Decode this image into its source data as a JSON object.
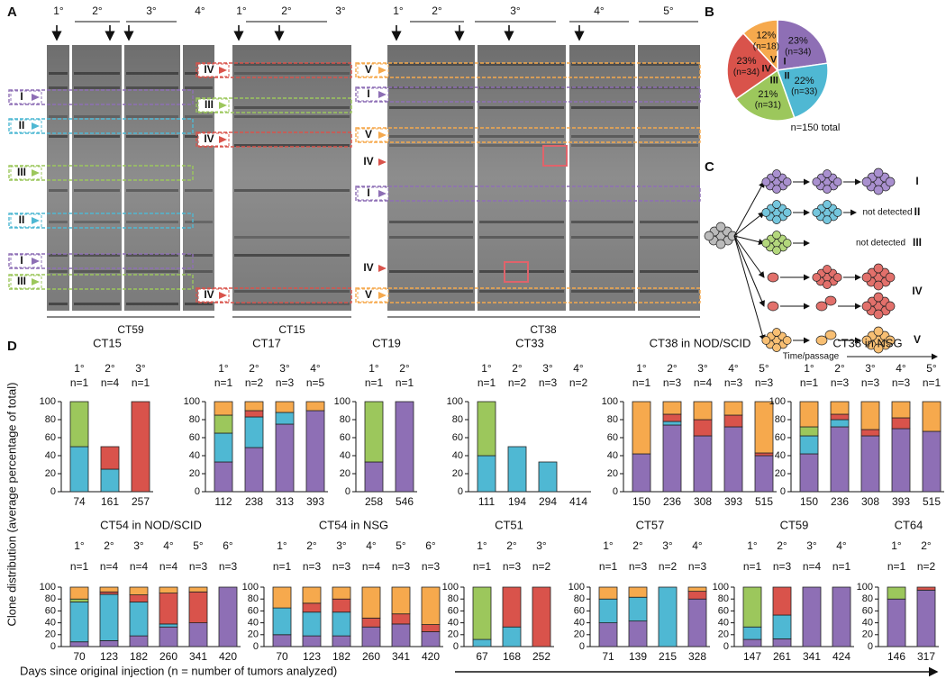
{
  "panel_labels": [
    "A",
    "B",
    "C",
    "D"
  ],
  "panel_a": {
    "blots": [
      {
        "name": "CT59",
        "passages": [
          "1°",
          "2°",
          "3°",
          "4°"
        ],
        "bands": [
          "I",
          "II",
          "III",
          "II",
          "I",
          "III"
        ]
      },
      {
        "name": "CT15",
        "passages": [
          "1°",
          "2°",
          "3°"
        ],
        "bands": [
          "IV",
          "III",
          "IV",
          "IV"
        ]
      },
      {
        "name": "CT38",
        "passages": [
          "1°",
          "2°",
          "3°",
          "4°",
          "5°"
        ],
        "bands": [
          "V",
          "I",
          "V",
          "IV",
          "I",
          "IV",
          "V"
        ]
      }
    ]
  },
  "panel_c": {
    "labels": [
      "I",
      "II",
      "III",
      "IV",
      "V"
    ],
    "notes": [
      "not detected",
      "not detected"
    ],
    "axis_label": "Time/passage"
  },
  "panel_d": {
    "ylabel": "Clone distribution (average percentage of total)",
    "xlabel": "Days since original injection (n = number of tumors analyzed)"
  },
  "chart_data": [
    {
      "type": "pie",
      "categories": [
        "I",
        "II",
        "III",
        "IV",
        "V"
      ],
      "values": [
        23,
        22,
        21,
        23,
        12
      ],
      "value_labels": [
        "23%",
        "22%",
        "21%",
        "23%",
        "12%"
      ],
      "n_labels": [
        "(n=34)",
        "(n=33)",
        "(n=31)",
        "(n=34)",
        "(n=18)"
      ],
      "colors": [
        "#8e6fb5",
        "#4fb8d3",
        "#9cc75c",
        "#d9534b",
        "#f6a94d"
      ],
      "note": "n=150 total"
    },
    {
      "type": "bar",
      "title": "CT15",
      "passages": [
        "1°",
        "2°",
        "3°"
      ],
      "n_labels": [
        "n=1",
        "n=4",
        "n=1"
      ],
      "categories": [
        "74",
        "161",
        "257"
      ],
      "ylim": [
        0,
        100
      ],
      "yticks": [
        0,
        20,
        40,
        60,
        80,
        100
      ],
      "series": [
        {
          "color": "#8e6fb5",
          "values": [
            0,
            0,
            0
          ]
        },
        {
          "color": "#4fb8d3",
          "values": [
            50,
            25,
            0
          ]
        },
        {
          "color": "#9cc75c",
          "values": [
            50,
            0,
            0
          ]
        },
        {
          "color": "#d9534b",
          "values": [
            0,
            25,
            100
          ]
        },
        {
          "color": "#f6a94d",
          "values": [
            0,
            0,
            0
          ]
        }
      ]
    },
    {
      "type": "bar",
      "title": "CT17",
      "passages": [
        "1°",
        "2°",
        "3°",
        "4°"
      ],
      "n_labels": [
        "n=1",
        "n=2",
        "n=3",
        "n=5"
      ],
      "categories": [
        "112",
        "238",
        "313",
        "393"
      ],
      "ylim": [
        0,
        100
      ],
      "yticks": [
        0,
        20,
        40,
        60,
        80,
        100
      ],
      "series": [
        {
          "color": "#8e6fb5",
          "values": [
            33,
            49,
            75,
            90
          ]
        },
        {
          "color": "#4fb8d3",
          "values": [
            32,
            34,
            13,
            0
          ]
        },
        {
          "color": "#9cc75c",
          "values": [
            20,
            0,
            0,
            0
          ]
        },
        {
          "color": "#d9534b",
          "values": [
            0,
            7,
            0,
            0
          ]
        },
        {
          "color": "#f6a94d",
          "values": [
            15,
            10,
            12,
            10
          ]
        }
      ]
    },
    {
      "type": "bar",
      "title": "CT19",
      "passages": [
        "1°",
        "2°"
      ],
      "n_labels": [
        "n=1",
        "n=1"
      ],
      "categories": [
        "258",
        "546"
      ],
      "ylim": [
        0,
        100
      ],
      "yticks": [
        0,
        20,
        40,
        60,
        80,
        100
      ],
      "series": [
        {
          "color": "#8e6fb5",
          "values": [
            33,
            100
          ]
        },
        {
          "color": "#4fb8d3",
          "values": [
            0,
            0
          ]
        },
        {
          "color": "#9cc75c",
          "values": [
            67,
            0
          ]
        },
        {
          "color": "#d9534b",
          "values": [
            0,
            0
          ]
        },
        {
          "color": "#f6a94d",
          "values": [
            0,
            0
          ]
        }
      ]
    },
    {
      "type": "bar",
      "title": "CT33",
      "passages": [
        "1°",
        "2°",
        "3°",
        "4°"
      ],
      "n_labels": [
        "n=1",
        "n=2",
        "n=3",
        "n=2"
      ],
      "categories": [
        "111",
        "194",
        "294",
        "414"
      ],
      "ylim": [
        0,
        100
      ],
      "yticks": [
        0,
        20,
        40,
        60,
        80,
        100
      ],
      "series": [
        {
          "color": "#8e6fb5",
          "values": [
            0,
            0,
            0,
            0
          ]
        },
        {
          "color": "#4fb8d3",
          "values": [
            40,
            50,
            33,
            0
          ]
        },
        {
          "color": "#9cc75c",
          "values": [
            60,
            0,
            0,
            0
          ]
        },
        {
          "color": "#d9534b",
          "values": [
            0,
            0,
            0,
            0
          ]
        },
        {
          "color": "#f6a94d",
          "values": [
            0,
            0,
            0,
            0
          ]
        }
      ]
    },
    {
      "type": "bar",
      "title": "CT38 in NOD/SCID",
      "passages": [
        "1°",
        "2°",
        "3°",
        "4°",
        "5°"
      ],
      "n_labels": [
        "n=1",
        "n=3",
        "n=4",
        "n=3",
        "n=3"
      ],
      "categories": [
        "150",
        "236",
        "308",
        "393",
        "515"
      ],
      "ylim": [
        0,
        100
      ],
      "yticks": [
        0,
        20,
        40,
        60,
        80,
        100
      ],
      "series": [
        {
          "color": "#8e6fb5",
          "values": [
            42,
            74,
            62,
            72,
            40
          ]
        },
        {
          "color": "#4fb8d3",
          "values": [
            0,
            4,
            0,
            0,
            0
          ]
        },
        {
          "color": "#9cc75c",
          "values": [
            0,
            0,
            0,
            0,
            0
          ]
        },
        {
          "color": "#d9534b",
          "values": [
            0,
            8,
            18,
            13,
            3
          ]
        },
        {
          "color": "#f6a94d",
          "values": [
            58,
            14,
            20,
            15,
            57
          ]
        }
      ]
    },
    {
      "type": "bar",
      "title": "CT38 in NSG",
      "passages": [
        "1°",
        "2°",
        "3°",
        "4°",
        "5°"
      ],
      "n_labels": [
        "n=1",
        "n=3",
        "n=3",
        "n=3",
        "n=1"
      ],
      "categories": [
        "150",
        "236",
        "308",
        "393",
        "515"
      ],
      "ylim": [
        0,
        100
      ],
      "yticks": [
        0,
        20,
        40,
        60,
        80,
        100
      ],
      "series": [
        {
          "color": "#8e6fb5",
          "values": [
            42,
            72,
            62,
            70,
            67
          ]
        },
        {
          "color": "#4fb8d3",
          "values": [
            20,
            8,
            0,
            0,
            0
          ]
        },
        {
          "color": "#9cc75c",
          "values": [
            10,
            0,
            0,
            0,
            0
          ]
        },
        {
          "color": "#d9534b",
          "values": [
            0,
            6,
            7,
            12,
            0
          ]
        },
        {
          "color": "#f6a94d",
          "values": [
            28,
            14,
            31,
            18,
            33
          ]
        }
      ]
    },
    {
      "type": "bar",
      "title": "CT54 in NOD/SCID",
      "passages": [
        "1°",
        "2°",
        "3°",
        "4°",
        "5°",
        "6°"
      ],
      "n_labels": [
        "n=1",
        "n=4",
        "n=4",
        "n=4",
        "n=3",
        "n=3"
      ],
      "categories": [
        "70",
        "123",
        "182",
        "260",
        "341",
        "420"
      ],
      "ylim": [
        0,
        100
      ],
      "yticks": [
        0,
        20,
        40,
        60,
        80,
        100
      ],
      "series": [
        {
          "color": "#8e6fb5",
          "values": [
            8,
            10,
            18,
            33,
            40,
            100
          ]
        },
        {
          "color": "#4fb8d3",
          "values": [
            67,
            78,
            57,
            5,
            0,
            0
          ]
        },
        {
          "color": "#9cc75c",
          "values": [
            5,
            0,
            0,
            0,
            0,
            0
          ]
        },
        {
          "color": "#d9534b",
          "values": [
            0,
            4,
            12,
            52,
            52,
            0
          ]
        },
        {
          "color": "#f6a94d",
          "values": [
            20,
            8,
            13,
            10,
            8,
            0
          ]
        }
      ]
    },
    {
      "type": "bar",
      "title": "CT54 in NSG",
      "passages": [
        "1°",
        "2°",
        "3°",
        "4°",
        "5°",
        "6°"
      ],
      "n_labels": [
        "n=1",
        "n=3",
        "n=3",
        "n=4",
        "n=3",
        "n=3"
      ],
      "categories": [
        "70",
        "123",
        "182",
        "260",
        "341",
        "420"
      ],
      "ylim": [
        0,
        100
      ],
      "yticks": [
        0,
        20,
        40,
        60,
        80,
        100
      ],
      "series": [
        {
          "color": "#8e6fb5",
          "values": [
            20,
            18,
            18,
            33,
            38,
            25
          ]
        },
        {
          "color": "#4fb8d3",
          "values": [
            45,
            40,
            40,
            0,
            0,
            0
          ]
        },
        {
          "color": "#9cc75c",
          "values": [
            0,
            0,
            0,
            0,
            0,
            0
          ]
        },
        {
          "color": "#d9534b",
          "values": [
            0,
            15,
            22,
            15,
            17,
            12
          ]
        },
        {
          "color": "#f6a94d",
          "values": [
            35,
            27,
            20,
            52,
            45,
            63
          ]
        }
      ]
    },
    {
      "type": "bar",
      "title": "CT51",
      "passages": [
        "1°",
        "2°",
        "3°"
      ],
      "n_labels": [
        "n=1",
        "n=3",
        "n=2"
      ],
      "categories": [
        "67",
        "168",
        "252"
      ],
      "ylim": [
        0,
        100
      ],
      "yticks": [
        0,
        20,
        40,
        60,
        80,
        100
      ],
      "series": [
        {
          "color": "#8e6fb5",
          "values": [
            0,
            0,
            0
          ]
        },
        {
          "color": "#4fb8d3",
          "values": [
            12,
            33,
            0
          ]
        },
        {
          "color": "#9cc75c",
          "values": [
            88,
            0,
            0
          ]
        },
        {
          "color": "#d9534b",
          "values": [
            0,
            67,
            100
          ]
        },
        {
          "color": "#f6a94d",
          "values": [
            0,
            0,
            0
          ]
        }
      ]
    },
    {
      "type": "bar",
      "title": "CT57",
      "passages": [
        "1°",
        "2°",
        "3°",
        "4°"
      ],
      "n_labels": [
        "n=1",
        "n=3",
        "n=2",
        "n=3"
      ],
      "categories": [
        "71",
        "139",
        "215",
        "328"
      ],
      "ylim": [
        0,
        100
      ],
      "yticks": [
        0,
        20,
        40,
        60,
        80,
        100
      ],
      "series": [
        {
          "color": "#8e6fb5",
          "values": [
            40,
            43,
            0,
            80
          ]
        },
        {
          "color": "#4fb8d3",
          "values": [
            40,
            40,
            100,
            0
          ]
        },
        {
          "color": "#9cc75c",
          "values": [
            0,
            0,
            0,
            0
          ]
        },
        {
          "color": "#d9534b",
          "values": [
            0,
            0,
            0,
            13
          ]
        },
        {
          "color": "#f6a94d",
          "values": [
            20,
            17,
            0,
            7
          ]
        }
      ]
    },
    {
      "type": "bar",
      "title": "CT59",
      "passages": [
        "1°",
        "2°",
        "3°",
        "4°"
      ],
      "n_labels": [
        "n=1",
        "n=3",
        "n=4",
        "n=1"
      ],
      "categories": [
        "147",
        "261",
        "341",
        "424"
      ],
      "ylim": [
        0,
        100
      ],
      "yticks": [
        0,
        20,
        40,
        60,
        80,
        100
      ],
      "series": [
        {
          "color": "#8e6fb5",
          "values": [
            12,
            13,
            100,
            100
          ]
        },
        {
          "color": "#4fb8d3",
          "values": [
            21,
            40,
            0,
            0
          ]
        },
        {
          "color": "#9cc75c",
          "values": [
            67,
            0,
            0,
            0
          ]
        },
        {
          "color": "#d9534b",
          "values": [
            0,
            47,
            0,
            0
          ]
        },
        {
          "color": "#f6a94d",
          "values": [
            0,
            0,
            0,
            0
          ]
        }
      ]
    },
    {
      "type": "bar",
      "title": "CT64",
      "passages": [
        "1°",
        "2°"
      ],
      "n_labels": [
        "n=1",
        "n=2"
      ],
      "categories": [
        "146",
        "317"
      ],
      "ylim": [
        0,
        100
      ],
      "yticks": [
        0,
        20,
        40,
        60,
        80,
        100
      ],
      "series": [
        {
          "color": "#8e6fb5",
          "values": [
            80,
            95
          ]
        },
        {
          "color": "#4fb8d3",
          "values": [
            0,
            0
          ]
        },
        {
          "color": "#9cc75c",
          "values": [
            20,
            0
          ]
        },
        {
          "color": "#d9534b",
          "values": [
            0,
            5
          ]
        },
        {
          "color": "#f6a94d",
          "values": [
            0,
            0
          ]
        }
      ]
    }
  ]
}
